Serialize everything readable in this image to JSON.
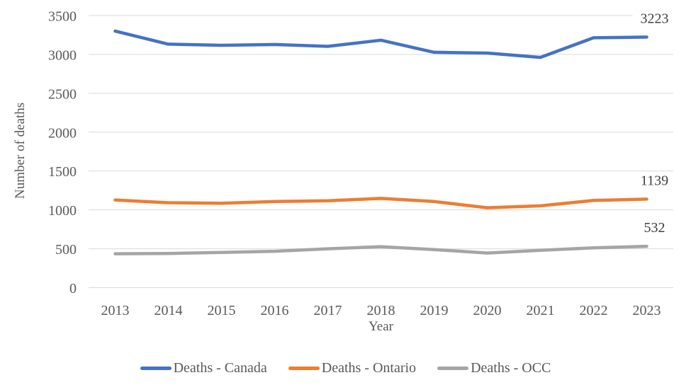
{
  "chart_data": {
    "type": "line",
    "xlabel": "Year",
    "ylabel": "Number of deaths",
    "x": [
      "2013",
      "2014",
      "2015",
      "2016",
      "2017",
      "2018",
      "2019",
      "2020",
      "2021",
      "2022",
      "2023"
    ],
    "ylim": [
      0,
      3500
    ],
    "ytick_step": 500,
    "grid": true,
    "legend_position": "bottom",
    "series": [
      {
        "name": "Deaths - Canada",
        "color": "#4472C4",
        "values": [
          3301,
          3132,
          3118,
          3128,
          3104,
          3183,
          3028,
          3018,
          2962,
          3214,
          3223
        ],
        "end_label": "3223"
      },
      {
        "name": "Deaths - Ontario",
        "color": "#ED7D31",
        "values": [
          1128,
          1092,
          1086,
          1108,
          1118,
          1148,
          1108,
          1028,
          1052,
          1122,
          1139
        ],
        "end_label": "1139"
      },
      {
        "name": "Deaths - OCC",
        "color": "#A5A5A5",
        "values": [
          436,
          440,
          452,
          468,
          500,
          527,
          490,
          445,
          480,
          512,
          532
        ],
        "end_label": "532"
      }
    ],
    "colors": {
      "gridline": "#D9D9D9",
      "axis_text": "#595959",
      "data_label": "#404040",
      "background": "#FFFFFF"
    }
  }
}
